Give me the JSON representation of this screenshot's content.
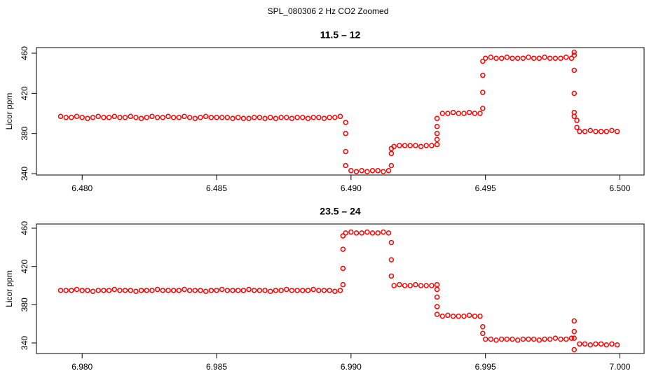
{
  "title": "SPL_080306  2 Hz CO2 Zoomed",
  "chart_data": [
    {
      "type": "scatter",
      "title": "11.5 – 12",
      "y_label": "Licor ppm",
      "color": "#ff0000",
      "xlim": [
        6.4783,
        6.5009
      ],
      "ylim": [
        338.6,
        465.6
      ],
      "xticks": [
        {
          "value": 6.48,
          "label": "6.480"
        },
        {
          "value": 6.485,
          "label": "6.485"
        },
        {
          "value": 6.49,
          "label": "6.490"
        },
        {
          "value": 6.495,
          "label": "6.495"
        },
        {
          "value": 6.5,
          "label": "6.500"
        }
      ],
      "yticks": [
        340,
        380,
        420,
        460
      ],
      "x": [
        6.4792,
        6.4794,
        6.4796,
        6.4798,
        6.48,
        6.4802,
        6.4804,
        6.4806,
        6.4808,
        6.481,
        6.4812,
        6.4814,
        6.4816,
        6.4818,
        6.482,
        6.4822,
        6.4824,
        6.4826,
        6.4828,
        6.483,
        6.4832,
        6.4834,
        6.4836,
        6.4838,
        6.484,
        6.4842,
        6.4844,
        6.4846,
        6.4848,
        6.485,
        6.4852,
        6.4854,
        6.4856,
        6.4858,
        6.486,
        6.4862,
        6.4864,
        6.4866,
        6.4868,
        6.487,
        6.4872,
        6.4874,
        6.4876,
        6.4878,
        6.488,
        6.4882,
        6.4884,
        6.4886,
        6.4888,
        6.489,
        6.4892,
        6.4894,
        6.4896,
        6.4898,
        6.4898,
        6.4898,
        6.4898,
        6.49,
        6.4902,
        6.4904,
        6.4906,
        6.4908,
        6.491,
        6.4912,
        6.4914,
        6.4915,
        6.4915,
        6.4915,
        6.4916,
        6.4918,
        6.492,
        6.4922,
        6.4924,
        6.4926,
        6.4928,
        6.493,
        6.4932,
        6.4932,
        6.4932,
        6.4932,
        6.4932,
        6.4934,
        6.4936,
        6.4938,
        6.494,
        6.4942,
        6.4944,
        6.4946,
        6.4948,
        6.4949,
        6.4949,
        6.4949,
        6.4949,
        6.495,
        6.4952,
        6.4954,
        6.4956,
        6.4958,
        6.496,
        6.4962,
        6.4964,
        6.4966,
        6.4968,
        6.497,
        6.4972,
        6.4974,
        6.4976,
        6.4978,
        6.498,
        6.4982,
        6.4983,
        6.4983,
        6.4983,
        6.4983,
        6.4983,
        6.4983,
        6.4984,
        6.4984,
        6.4985,
        6.4987,
        6.4989,
        6.4991,
        6.4993,
        6.4995,
        6.4997,
        6.4999
      ],
      "y": [
        397,
        396,
        396,
        397,
        396,
        395,
        396,
        397,
        396,
        396,
        397,
        396,
        396,
        397,
        396,
        395,
        396,
        397,
        396,
        396,
        397,
        396,
        396,
        397,
        396,
        395,
        396,
        397,
        396,
        396,
        396,
        396,
        395,
        396,
        395,
        395,
        396,
        396,
        395,
        396,
        395,
        396,
        396,
        395,
        396,
        396,
        395,
        396,
        396,
        395,
        396,
        396,
        397,
        391,
        380,
        362,
        348,
        343,
        342,
        343,
        342,
        343,
        343,
        342,
        343,
        348,
        360,
        365,
        367,
        368,
        368,
        368,
        368,
        367,
        368,
        368,
        369,
        374,
        380,
        387,
        395,
        400,
        400,
        401,
        400,
        400,
        401,
        400,
        400,
        405,
        421,
        438,
        452,
        455,
        456,
        455,
        455,
        456,
        455,
        455,
        455,
        456,
        455,
        455,
        456,
        455,
        455,
        455,
        456,
        455,
        461,
        458,
        443,
        420,
        401,
        397,
        393,
        386,
        382,
        382,
        383,
        382,
        382,
        382,
        383,
        382
      ]
    },
    {
      "type": "scatter",
      "title": "23.5 – 24",
      "y_label": "Licor ppm",
      "color": "#ff0000",
      "xlim": [
        6.9783,
        7.0009
      ],
      "ylim": [
        329,
        464.4
      ],
      "xticks": [
        {
          "value": 6.98,
          "label": "6.980"
        },
        {
          "value": 6.985,
          "label": "6.985"
        },
        {
          "value": 6.99,
          "label": "6.990"
        },
        {
          "value": 6.995,
          "label": "6.995"
        },
        {
          "value": 7,
          "label": "7.000"
        }
      ],
      "yticks": [
        340,
        380,
        420,
        460
      ],
      "x": [
        6.9792,
        6.9794,
        6.9796,
        6.9798,
        6.98,
        6.9802,
        6.9804,
        6.9806,
        6.9808,
        6.981,
        6.9812,
        6.9814,
        6.9816,
        6.9818,
        6.982,
        6.9822,
        6.9824,
        6.9826,
        6.9828,
        6.983,
        6.9832,
        6.9834,
        6.9836,
        6.9838,
        6.984,
        6.9842,
        6.9844,
        6.9846,
        6.9848,
        6.985,
        6.9852,
        6.9854,
        6.9856,
        6.9858,
        6.986,
        6.9862,
        6.9864,
        6.9866,
        6.9868,
        6.987,
        6.9872,
        6.9874,
        6.9876,
        6.9878,
        6.988,
        6.9882,
        6.9884,
        6.9886,
        6.9888,
        6.989,
        6.9892,
        6.9894,
        6.9896,
        6.9897,
        6.9897,
        6.9897,
        6.9897,
        6.9898,
        6.99,
        6.9902,
        6.9904,
        6.9906,
        6.9908,
        6.991,
        6.9912,
        6.9914,
        6.9915,
        6.9915,
        6.9915,
        6.9916,
        6.9918,
        6.992,
        6.9922,
        6.9924,
        6.9926,
        6.9928,
        6.993,
        6.9932,
        6.9932,
        6.9932,
        6.9932,
        6.9932,
        6.9934,
        6.9936,
        6.9938,
        6.994,
        6.9942,
        6.9944,
        6.9946,
        6.9948,
        6.9949,
        6.9949,
        6.995,
        6.9952,
        6.9954,
        6.9956,
        6.9958,
        6.996,
        6.9962,
        6.9964,
        6.9966,
        6.9968,
        6.997,
        6.9972,
        6.9974,
        6.9976,
        6.9978,
        6.998,
        6.9982,
        6.9983,
        6.9983,
        6.9983,
        6.9983,
        6.9985,
        6.9987,
        6.9989,
        6.9991,
        6.9993,
        6.9995,
        6.9997,
        6.9999
      ],
      "y": [
        395,
        395,
        395,
        396,
        395,
        395,
        394,
        395,
        395,
        395,
        396,
        395,
        395,
        395,
        394,
        395,
        395,
        395,
        396,
        395,
        395,
        395,
        395,
        396,
        395,
        395,
        395,
        394,
        395,
        395,
        396,
        395,
        395,
        395,
        395,
        396,
        395,
        395,
        395,
        394,
        395,
        395,
        396,
        395,
        395,
        395,
        395,
        396,
        395,
        395,
        395,
        394,
        395,
        401,
        418,
        438,
        452,
        455,
        456,
        455,
        455,
        456,
        455,
        455,
        456,
        455,
        445,
        427,
        410,
        400,
        401,
        400,
        400,
        401,
        400,
        400,
        400,
        401,
        396,
        388,
        378,
        370,
        368,
        369,
        368,
        368,
        368,
        369,
        368,
        368,
        357,
        350,
        344,
        344,
        343,
        344,
        344,
        344,
        343,
        344,
        344,
        344,
        343,
        344,
        344,
        345,
        344,
        344,
        345,
        363,
        352,
        333,
        345,
        339,
        339,
        338,
        339,
        339,
        338,
        339,
        338
      ]
    }
  ]
}
